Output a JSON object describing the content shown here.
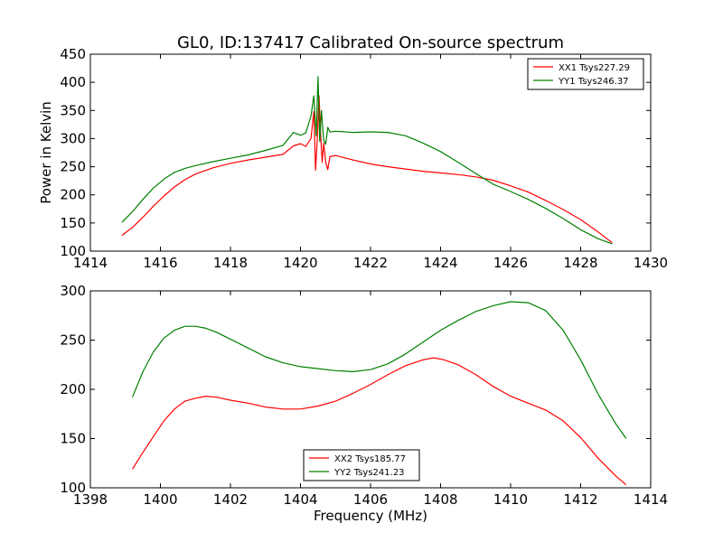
{
  "chart_data": [
    {
      "type": "line",
      "title": "GL0, ID:137417 Calibrated On-source spectrum",
      "xlabel": "",
      "ylabel": "Power in Kelvin",
      "xlim": [
        1414,
        1430
      ],
      "ylim": [
        100,
        450
      ],
      "xticks": [
        "1414",
        "1416",
        "1418",
        "1420",
        "1422",
        "1424",
        "1426",
        "1428",
        "1430"
      ],
      "yticks": [
        "100",
        "150",
        "200",
        "250",
        "300",
        "350",
        "400",
        "450"
      ],
      "grid": false,
      "legend_position": "top-right",
      "series": [
        {
          "name": "XX1 Tsys227.29",
          "color": "#ff0000",
          "x": [
            1414.9,
            1415.2,
            1415.5,
            1415.8,
            1416.1,
            1416.4,
            1416.7,
            1417.0,
            1417.5,
            1418.0,
            1418.5,
            1419.0,
            1419.5,
            1419.8,
            1420.0,
            1420.15,
            1420.3,
            1420.38,
            1420.43,
            1420.48,
            1420.53,
            1420.58,
            1420.62,
            1420.66,
            1420.72,
            1420.78,
            1420.84,
            1421.0,
            1421.5,
            1422.0,
            1422.5,
            1423.0,
            1423.5,
            1424.0,
            1424.5,
            1425.0,
            1425.5,
            1426.0,
            1426.5,
            1427.0,
            1427.5,
            1428.0,
            1428.5,
            1428.9
          ],
          "y": [
            128,
            142,
            160,
            180,
            198,
            214,
            227,
            237,
            248,
            256,
            262,
            267,
            272,
            287,
            291,
            286,
            300,
            348,
            244,
            300,
            376,
            300,
            258,
            292,
            258,
            245,
            268,
            270,
            262,
            255,
            250,
            246,
            242,
            239,
            236,
            232,
            226,
            216,
            205,
            190,
            174,
            156,
            134,
            115
          ]
        },
        {
          "name": "YY1 Tsys246.37",
          "color": "#008000",
          "x": [
            1414.9,
            1415.2,
            1415.5,
            1415.8,
            1416.1,
            1416.4,
            1416.7,
            1417.0,
            1417.5,
            1418.0,
            1418.5,
            1419.0,
            1419.5,
            1419.8,
            1420.0,
            1420.15,
            1420.3,
            1420.38,
            1420.45,
            1420.5,
            1420.55,
            1420.6,
            1420.66,
            1420.72,
            1420.78,
            1420.84,
            1421.0,
            1421.5,
            1422.0,
            1422.5,
            1423.0,
            1423.5,
            1424.0,
            1424.5,
            1425.0,
            1425.5,
            1426.0,
            1426.5,
            1427.0,
            1427.5,
            1428.0,
            1428.5,
            1428.9
          ],
          "y": [
            151,
            170,
            192,
            212,
            228,
            240,
            247,
            252,
            259,
            265,
            271,
            279,
            288,
            311,
            306,
            310,
            340,
            376,
            305,
            410,
            295,
            350,
            298,
            290,
            320,
            312,
            313,
            311,
            312,
            311,
            305,
            292,
            277,
            258,
            238,
            219,
            206,
            192,
            176,
            158,
            138,
            122,
            113
          ]
        }
      ]
    },
    {
      "type": "line",
      "title": "",
      "xlabel": "Frequency (MHz)",
      "ylabel": "",
      "xlim": [
        1398,
        1414
      ],
      "ylim": [
        100,
        300
      ],
      "xticks": [
        "1398",
        "1400",
        "1402",
        "1404",
        "1406",
        "1408",
        "1410",
        "1412",
        "1414"
      ],
      "yticks": [
        "100",
        "150",
        "200",
        "250",
        "300"
      ],
      "grid": false,
      "legend_position": "bottom-center",
      "series": [
        {
          "name": "XX2 Tsys185.77",
          "color": "#ff0000",
          "x": [
            1399.2,
            1399.5,
            1399.8,
            1400.1,
            1400.4,
            1400.7,
            1401.0,
            1401.3,
            1401.6,
            1402.0,
            1402.5,
            1403.0,
            1403.5,
            1404.0,
            1404.5,
            1405.0,
            1405.5,
            1406.0,
            1406.5,
            1407.0,
            1407.5,
            1407.8,
            1408.1,
            1408.5,
            1409.0,
            1409.5,
            1410.0,
            1410.5,
            1411.0,
            1411.5,
            1412.0,
            1412.5,
            1413.0,
            1413.3
          ],
          "y": [
            119,
            136,
            152,
            168,
            180,
            188,
            191,
            193,
            192,
            189,
            186,
            182,
            180,
            180,
            183,
            188,
            196,
            205,
            215,
            224,
            230,
            232,
            230,
            225,
            215,
            203,
            193,
            186,
            179,
            168,
            151,
            130,
            112,
            103
          ]
        },
        {
          "name": "YY2 Tsys241.23",
          "color": "#008000",
          "x": [
            1399.2,
            1399.5,
            1399.8,
            1400.1,
            1400.4,
            1400.7,
            1401.0,
            1401.3,
            1401.6,
            1402.0,
            1402.5,
            1403.0,
            1403.5,
            1404.0,
            1404.5,
            1405.0,
            1405.5,
            1406.0,
            1406.5,
            1407.0,
            1407.5,
            1408.0,
            1408.5,
            1409.0,
            1409.5,
            1410.0,
            1410.5,
            1411.0,
            1411.5,
            1412.0,
            1412.5,
            1413.0,
            1413.3
          ],
          "y": [
            192,
            218,
            238,
            252,
            260,
            264,
            264,
            262,
            258,
            251,
            242,
            233,
            227,
            223,
            221,
            219,
            218,
            220,
            226,
            236,
            248,
            260,
            270,
            279,
            285,
            289,
            288,
            280,
            260,
            230,
            195,
            165,
            150
          ]
        }
      ]
    }
  ]
}
